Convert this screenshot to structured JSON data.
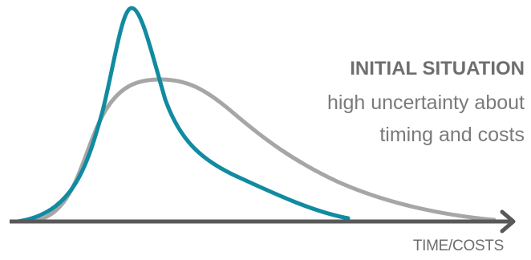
{
  "caption": {
    "title": "INITIAL SITUATION",
    "line1": "high uncertainty about",
    "line2": "timing and costs"
  },
  "axis": {
    "x_label": "TIME/COSTS"
  },
  "colors": {
    "wide_curve": "#a6a6a6",
    "peaked_curve": "#108ba0",
    "axis": "#595959",
    "text": "#777777"
  }
}
